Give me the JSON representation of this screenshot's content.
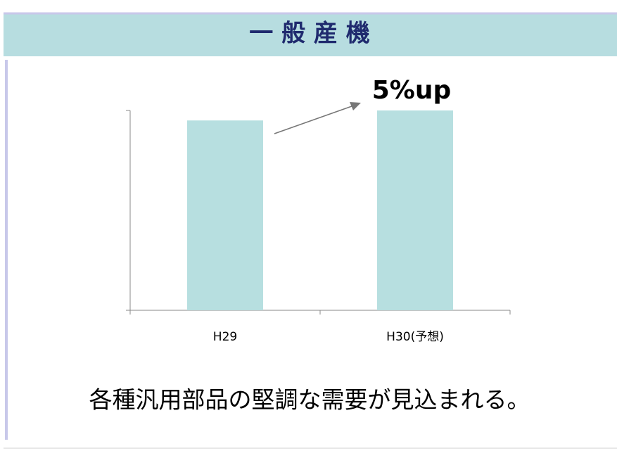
{
  "chart_data": {
    "type": "bar",
    "title": "一 般 産 機",
    "categories": [
      "H29",
      "H30(予想)"
    ],
    "values": [
      95,
      100
    ],
    "color": "#b7dfe0",
    "ylim": [
      0,
      100
    ],
    "yticks": [
      0,
      100
    ],
    "annotation": "5%up",
    "caption": "各種汎用部品の堅調な需要が見込まれる。"
  }
}
